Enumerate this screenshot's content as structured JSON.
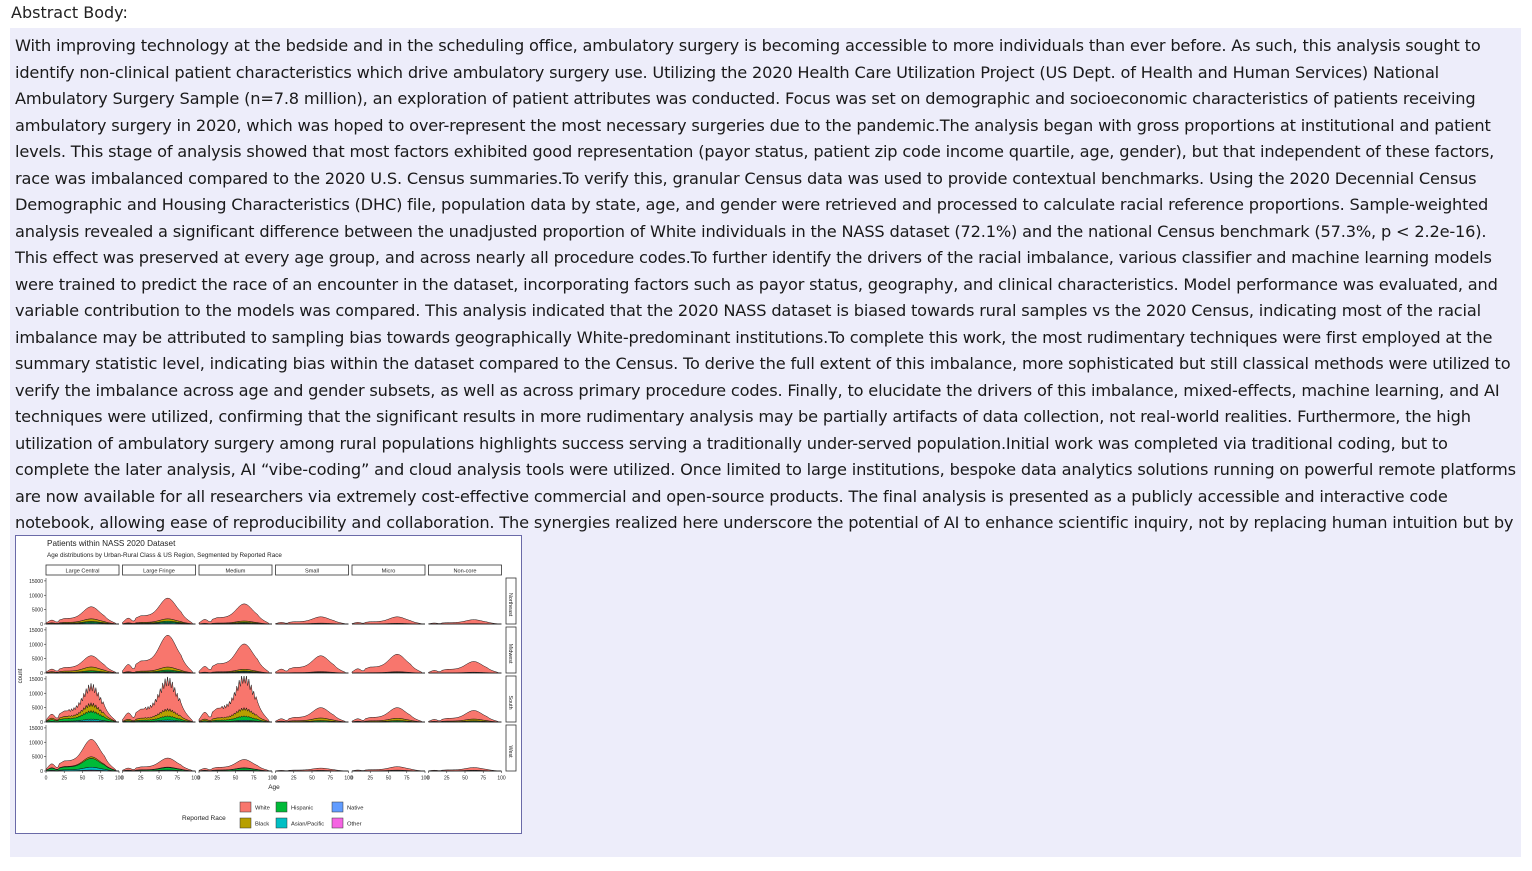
{
  "page": {
    "heading": "Abstract Body:",
    "body": "With improving technology at the bedside and in the scheduling office, ambulatory surgery is becoming accessible to more individuals than ever before. As such, this analysis sought to identify non-clinical patient characteristics which drive ambulatory surgery use. Utilizing the 2020 Health Care Utilization Project (US Dept. of Health and Human Services) National Ambulatory Surgery Sample (n=7.8 million), an exploration of patient attributes was conducted. Focus was set on demographic and socioeconomic characteristics of patients receiving ambulatory surgery in 2020, which was hoped to over-represent the most necessary surgeries due to the pandemic.The analysis began with gross proportions at institutional and patient levels. This stage of analysis showed that most factors exhibited good representation (payor status, patient zip code income quartile, age, gender), but that independent of these factors, race was imbalanced compared to the 2020 U.S. Census summaries.To verify this, granular Census data was used to provide contextual benchmarks. Using the 2020 Decennial Census Demographic and Housing Characteristics (DHC) file, population data by state, age, and gender were retrieved and processed to calculate racial reference proportions. Sample-weighted analysis revealed a significant difference between the unadjusted proportion of White individuals in the NASS dataset (72.1%) and the national Census benchmark (57.3%, p < 2.2e-16). This effect was preserved at every age group, and across nearly all procedure codes.To further identify the drivers of the racial imbalance, various classifier and machine learning models were trained to predict the race of an encounter in the dataset, incorporating factors such as payor status, geography, and clinical characteristics. Model performance was evaluated, and variable contribution to the models was compared. This analysis indicated that the 2020 NASS dataset is biased towards rural samples vs the 2020 Census, indicating most of the racial imbalance may be attributed to sampling bias towards geographically White-predominant institutions.To complete this work, the most rudimentary techniques were first employed at the summary statistic level, indicating bias within the dataset compared to the Census. To derive the full extent of this imbalance, more sophisticated but still classical methods were utilized to verify the imbalance across age and gender subsets, as well as across primary procedure codes. Finally, to elucidate the drivers of this imbalance, mixed-effects, machine learning, and AI techniques were utilized, confirming that the significant results in more rudimentary analysis may be partially artifacts of data collection, not real-world realities. Furthermore, the high utilization of ambulatory surgery among rural populations highlights success serving a traditionally under-served population.Initial work was completed via traditional coding, but to complete the later analysis, AI “vibe-coding” and cloud analysis tools were utilized. Once limited to large institutions, bespoke data analytics solutions running on powerful remote platforms are now available for all researchers via extremely cost-effective commercial and open-source products. The final analysis is presented as a publicly accessible and interactive code notebook, allowing ease of reproducibility and collaboration. The synergies realized here underscore the potential of AI to enhance scientific inquiry, not by replacing human intuition but by amplifying it through computational rigor and adaptability."
  },
  "chart_data": {
    "type": "area",
    "stacked": true,
    "title": "Patients within NASS 2020 Dataset",
    "subtitle": "Age distributions by Urban-Rural Class & US Region, Segmented by Reported Race",
    "xlabel": "Age",
    "ylabel": "count",
    "xlim": [
      0,
      100
    ],
    "ylim": [
      0,
      16000
    ],
    "x_ticks": [
      "0",
      "25",
      "50",
      "75",
      "100"
    ],
    "y_ticks": [
      "0",
      "5000",
      "10000",
      "15000"
    ],
    "columns": [
      "Large Central",
      "Large Fringe",
      "Medium",
      "Small",
      "Micro",
      "Non-core"
    ],
    "rows": [
      "Northeast",
      "Midwest",
      "South",
      "West"
    ],
    "legend_title": "Reported Race",
    "legend": [
      {
        "name": "White",
        "color": "#f8766d"
      },
      {
        "name": "Hispanic",
        "color": "#00ba38"
      },
      {
        "name": "Native",
        "color": "#619cff"
      },
      {
        "name": "Black",
        "color": "#b79f00"
      },
      {
        "name": "Asian/Pacific",
        "color": "#00bfc4"
      },
      {
        "name": "Other",
        "color": "#f564e3"
      }
    ],
    "stack_order": [
      "Other",
      "Native",
      "Asian/Pacific",
      "Hispanic",
      "Black",
      "White"
    ],
    "peak_age": 62,
    "peak_totals": [
      [
        6000,
        9000,
        7000,
        2500,
        2500,
        1500
      ],
      [
        6000,
        13000,
        10000,
        6000,
        6500,
        4000
      ],
      [
        12000,
        14000,
        15000,
        5000,
        5000,
        4000
      ],
      [
        11000,
        4500,
        4000,
        1000,
        1500,
        1200
      ]
    ],
    "shares": [
      [
        {
          "White": 0.7,
          "Black": 0.15,
          "Hispanic": 0.07,
          "Asian/Pacific": 0.05,
          "Native": 0.01,
          "Other": 0.02
        },
        {
          "White": 0.8,
          "Black": 0.09,
          "Hispanic": 0.05,
          "Asian/Pacific": 0.04,
          "Native": 0.01,
          "Other": 0.01
        },
        {
          "White": 0.85,
          "Black": 0.07,
          "Hispanic": 0.04,
          "Asian/Pacific": 0.02,
          "Native": 0.01,
          "Other": 0.01
        },
        {
          "White": 0.88,
          "Black": 0.05,
          "Hispanic": 0.03,
          "Asian/Pacific": 0.02,
          "Native": 0.01,
          "Other": 0.01
        },
        {
          "White": 0.9,
          "Black": 0.04,
          "Hispanic": 0.03,
          "Asian/Pacific": 0.01,
          "Native": 0.01,
          "Other": 0.01
        },
        {
          "White": 0.9,
          "Black": 0.04,
          "Hispanic": 0.03,
          "Asian/Pacific": 0.01,
          "Native": 0.01,
          "Other": 0.01
        }
      ],
      [
        {
          "White": 0.65,
          "Black": 0.22,
          "Hispanic": 0.07,
          "Asian/Pacific": 0.03,
          "Native": 0.01,
          "Other": 0.02
        },
        {
          "White": 0.85,
          "Black": 0.08,
          "Hispanic": 0.04,
          "Asian/Pacific": 0.02,
          "Native": 0.005,
          "Other": 0.015
        },
        {
          "White": 0.88,
          "Black": 0.06,
          "Hispanic": 0.03,
          "Asian/Pacific": 0.02,
          "Native": 0.005,
          "Other": 0.015
        },
        {
          "White": 0.92,
          "Black": 0.03,
          "Hispanic": 0.02,
          "Asian/Pacific": 0.01,
          "Native": 0.01,
          "Other": 0.01
        },
        {
          "White": 0.93,
          "Black": 0.02,
          "Hispanic": 0.02,
          "Asian/Pacific": 0.01,
          "Native": 0.01,
          "Other": 0.01
        },
        {
          "White": 0.93,
          "Black": 0.02,
          "Hispanic": 0.02,
          "Asian/Pacific": 0.01,
          "Native": 0.01,
          "Other": 0.01
        }
      ],
      [
        {
          "White": 0.5,
          "Black": 0.2,
          "Hispanic": 0.22,
          "Asian/Pacific": 0.05,
          "Native": 0.01,
          "Other": 0.02
        },
        {
          "White": 0.7,
          "Black": 0.16,
          "Hispanic": 0.09,
          "Asian/Pacific": 0.03,
          "Native": 0.01,
          "Other": 0.01
        },
        {
          "White": 0.7,
          "Black": 0.17,
          "Hispanic": 0.09,
          "Asian/Pacific": 0.02,
          "Native": 0.01,
          "Other": 0.01
        },
        {
          "White": 0.72,
          "Black": 0.18,
          "Hispanic": 0.07,
          "Asian/Pacific": 0.01,
          "Native": 0.01,
          "Other": 0.01
        },
        {
          "White": 0.74,
          "Black": 0.16,
          "Hispanic": 0.07,
          "Asian/Pacific": 0.01,
          "Native": 0.01,
          "Other": 0.01
        },
        {
          "White": 0.74,
          "Black": 0.16,
          "Hispanic": 0.06,
          "Asian/Pacific": 0.01,
          "Native": 0.02,
          "Other": 0.01
        }
      ],
      [
        {
          "White": 0.55,
          "Black": 0.05,
          "Hispanic": 0.28,
          "Asian/Pacific": 0.09,
          "Native": 0.01,
          "Other": 0.02
        },
        {
          "White": 0.7,
          "Black": 0.04,
          "Hispanic": 0.18,
          "Asian/Pacific": 0.05,
          "Native": 0.01,
          "Other": 0.02
        },
        {
          "White": 0.72,
          "Black": 0.03,
          "Hispanic": 0.17,
          "Asian/Pacific": 0.04,
          "Native": 0.02,
          "Other": 0.02
        },
        {
          "White": 0.78,
          "Black": 0.02,
          "Hispanic": 0.13,
          "Asian/Pacific": 0.03,
          "Native": 0.02,
          "Other": 0.02
        },
        {
          "White": 0.8,
          "Black": 0.02,
          "Hispanic": 0.11,
          "Asian/Pacific": 0.02,
          "Native": 0.03,
          "Other": 0.02
        },
        {
          "White": 0.78,
          "Black": 0.02,
          "Hispanic": 0.11,
          "Asian/Pacific": 0.02,
          "Native": 0.05,
          "Other": 0.02
        }
      ]
    ]
  }
}
